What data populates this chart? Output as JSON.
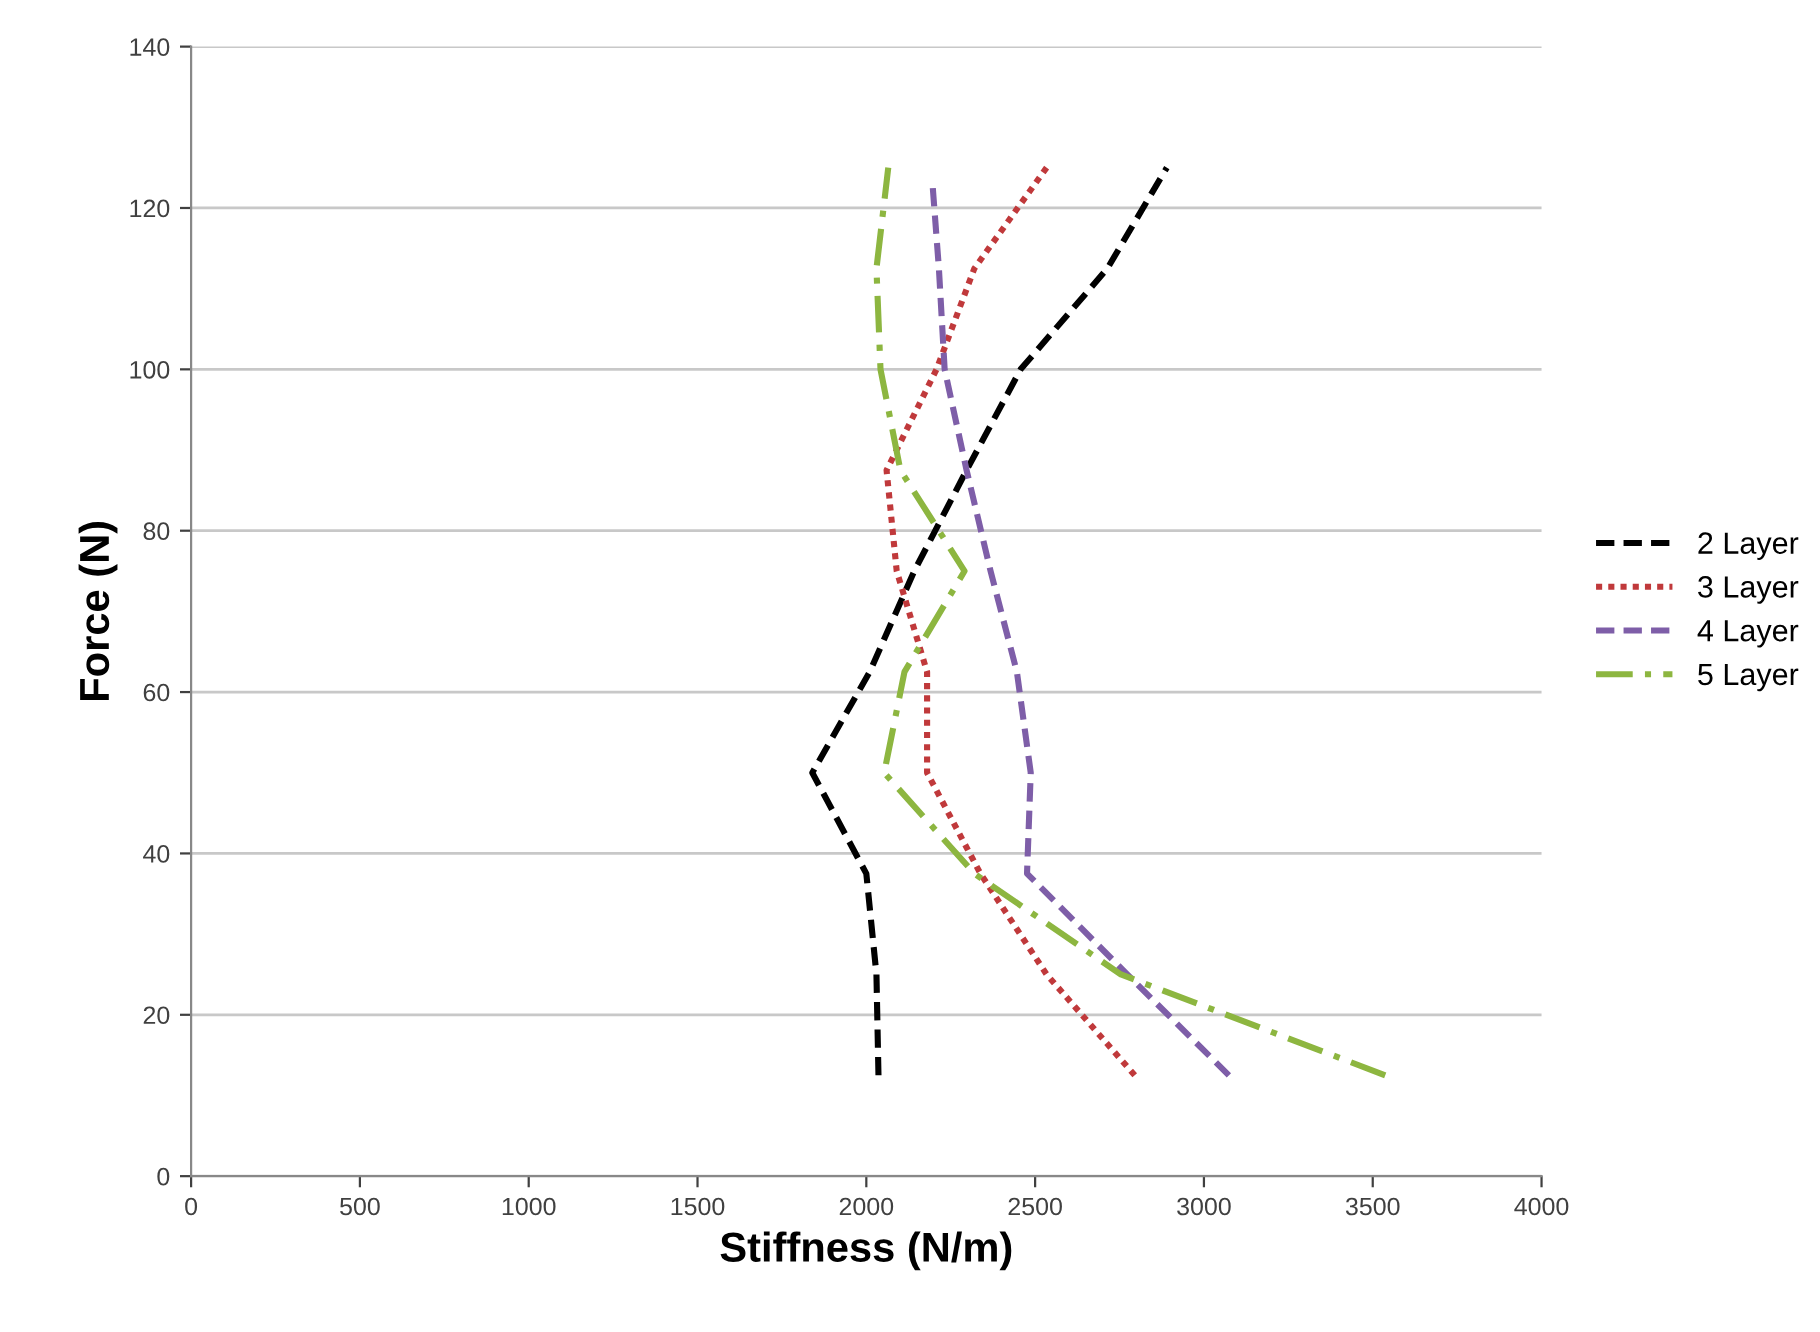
{
  "chart_data": {
    "type": "line",
    "xlabel": "Stiffness (N/m)",
    "ylabel": "Force (N)",
    "xlim": [
      0,
      4000
    ],
    "xticks": [
      0,
      500,
      1000,
      1500,
      2000,
      2500,
      3000,
      3500,
      4000
    ],
    "ylim": [
      0,
      140
    ],
    "yticks": [
      0,
      20,
      40,
      60,
      80,
      100,
      120,
      140
    ],
    "grid": "y",
    "legend": "right",
    "marker": "none",
    "series": [
      {
        "name": "2 Layer",
        "color": "#000000",
        "line_style": "dashed",
        "x": [
          2036,
          2030,
          2000,
          1840,
          2010,
          2142,
          2297,
          2457,
          2714,
          2890
        ],
        "values": [
          12.5,
          25,
          37.5,
          50,
          62.5,
          75,
          87.5,
          100,
          112.5,
          125
        ]
      },
      {
        "name": "3 Layer",
        "color": "#c0393b",
        "line_style": "dotted",
        "x": [
          2795,
          2534,
          2338,
          2180,
          2180,
          2090,
          2060,
          2208,
          2320,
          2534
        ],
        "values": [
          12.5,
          25,
          37.5,
          50,
          62.5,
          75,
          87.5,
          100,
          112.5,
          125
        ]
      },
      {
        "name": "4 Layer",
        "color": "#7e5ea8",
        "line_style": "dashed",
        "x": [
          3074,
          2773,
          2476,
          2487,
          2446,
          2368,
          2297,
          2232,
          2215,
          2196
        ],
        "values": [
          12.5,
          25,
          37.5,
          50,
          62.5,
          75,
          87.5,
          100,
          112.5,
          123
        ]
      },
      {
        "name": "5 Layer",
        "color": "#8db640",
        "line_style": "dashdot",
        "x": [
          3537,
          2754,
          2320,
          2053,
          2113,
          2291,
          2101,
          2042,
          2030,
          2065
        ],
        "values": [
          12.5,
          25,
          37.5,
          50,
          62.5,
          75,
          87.5,
          100,
          112.5,
          125
        ]
      }
    ]
  }
}
